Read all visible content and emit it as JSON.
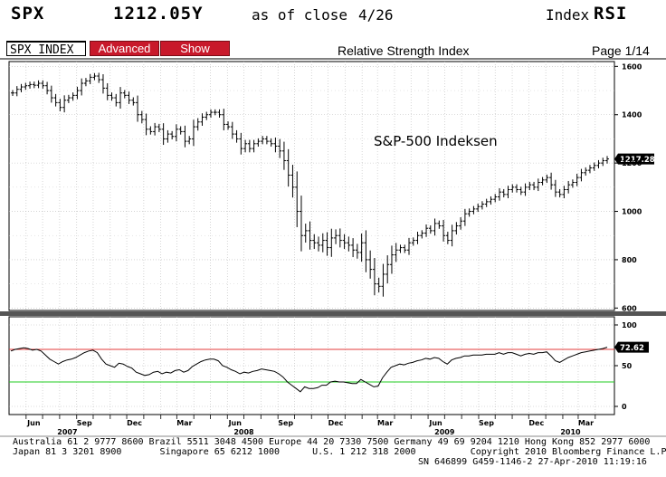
{
  "header": {
    "ticker": "SPX",
    "price": "1212.05Y",
    "as_of": "as of close",
    "date": "4/26",
    "index_label": "Index",
    "function": "RSI"
  },
  "toolbar": {
    "security_value": "SPX INDEX",
    "advanced_label": "Advanced",
    "show_label": "Show",
    "title": "Relative Strength Index",
    "page": "Page 1/14"
  },
  "colors": {
    "button_red": "#c8192b",
    "overbought_line": "#e33b3b",
    "oversold_line": "#22cc22",
    "price_tag_bg": "#000000"
  },
  "chart_data": [
    {
      "type": "ohlc",
      "title": "",
      "annotation": "S&P-500 Indeksen",
      "last_value_label": "1217.28",
      "ylim": [
        590,
        1620
      ],
      "y_ticks": [
        "1600",
        "1400",
        "1200",
        "1000",
        "800",
        "600"
      ],
      "y_tick_values": [
        1600,
        1400,
        1200,
        1000,
        800,
        600
      ],
      "grid": true,
      "x_start": "2007-05-01",
      "x_end": "2010-04-26",
      "weekly_close": [
        1490,
        1505,
        1515,
        1520,
        1525,
        1522,
        1530,
        1520,
        1500,
        1470,
        1450,
        1430,
        1460,
        1470,
        1480,
        1500,
        1530,
        1540,
        1555,
        1560,
        1545,
        1510,
        1480,
        1470,
        1450,
        1490,
        1480,
        1460,
        1450,
        1400,
        1380,
        1340,
        1330,
        1350,
        1340,
        1300,
        1320,
        1310,
        1340,
        1330,
        1290,
        1300,
        1350,
        1370,
        1390,
        1400,
        1410,
        1410,
        1400,
        1360,
        1350,
        1320,
        1300,
        1260,
        1280,
        1260,
        1280,
        1290,
        1300,
        1290,
        1280,
        1270,
        1250,
        1210,
        1150,
        1100,
        1000,
        900,
        920,
        880,
        870,
        860,
        880,
        850,
        890,
        900,
        880,
        870,
        860,
        840,
        830,
        870,
        800,
        760,
        700,
        690,
        740,
        780,
        820,
        840,
        850,
        840,
        870,
        880,
        900,
        910,
        930,
        920,
        950,
        940,
        900,
        880,
        920,
        940,
        960,
        990,
        1000,
        1010,
        1020,
        1030,
        1040,
        1050,
        1060,
        1080,
        1070,
        1090,
        1100,
        1090,
        1080,
        1100,
        1110,
        1100,
        1120,
        1130,
        1140,
        1110,
        1080,
        1070,
        1090,
        1110,
        1120,
        1140,
        1160,
        1170,
        1180,
        1190,
        1200,
        1210,
        1217
      ]
    },
    {
      "type": "line",
      "title": "",
      "last_value_label": "72.62",
      "ylim": [
        -10,
        110
      ],
      "y_ticks": [
        "100",
        "50",
        "0"
      ],
      "y_tick_values": [
        100,
        50,
        0
      ],
      "reference_lines": [
        70,
        30
      ],
      "grid": true,
      "values": [
        68,
        70,
        71,
        72,
        71,
        69,
        70,
        68,
        63,
        58,
        55,
        52,
        55,
        57,
        58,
        60,
        63,
        66,
        68,
        69,
        66,
        58,
        52,
        50,
        48,
        53,
        52,
        49,
        47,
        42,
        40,
        38,
        39,
        42,
        43,
        40,
        42,
        41,
        44,
        45,
        42,
        44,
        49,
        52,
        55,
        57,
        58,
        58,
        56,
        50,
        48,
        45,
        43,
        40,
        42,
        41,
        43,
        44,
        46,
        45,
        44,
        43,
        40,
        36,
        30,
        26,
        22,
        18,
        24,
        22,
        22,
        23,
        26,
        26,
        30,
        31,
        30,
        30,
        29,
        28,
        28,
        33,
        30,
        27,
        24,
        25,
        35,
        42,
        48,
        50,
        52,
        51,
        53,
        54,
        56,
        57,
        59,
        58,
        60,
        59,
        55,
        52,
        57,
        59,
        60,
        62,
        62,
        63,
        63,
        63,
        64,
        64,
        64,
        66,
        64,
        66,
        66,
        64,
        62,
        64,
        65,
        64,
        66,
        66,
        67,
        62,
        56,
        54,
        57,
        60,
        62,
        64,
        66,
        67,
        68,
        69,
        70,
        71,
        72.62
      ]
    }
  ],
  "x_axis": {
    "months": [
      "Jun",
      "Sep",
      "Dec",
      "Mar",
      "Jun",
      "Sep",
      "Dec",
      "Mar",
      "Jun",
      "Sep",
      "Dec",
      "Mar"
    ],
    "month_dates": [
      "2007-06-15",
      "2007-09-15",
      "2007-12-15",
      "2008-03-15",
      "2008-06-15",
      "2008-09-15",
      "2008-12-15",
      "2009-03-15",
      "2009-06-15",
      "2009-09-15",
      "2009-12-15",
      "2010-03-15"
    ],
    "years": [
      "2007",
      "2008",
      "2009",
      "2010"
    ],
    "year_dates": [
      "2007-08-15",
      "2008-07-01",
      "2009-07-01",
      "2010-02-15"
    ]
  },
  "footer": {
    "line1": "Australia 61 2 9777 8600 Brazil 5511 3048 4500 Europe 44 20 7330 7500 Germany 49 69 9204 1210 Hong Kong 852 2977 6000",
    "line2": "Japan 81 3 3201 8900       Singapore 65 6212 1000      U.S. 1 212 318 2000          Copyright 2010 Bloomberg Finance L.P.",
    "line3": "SN 646899 G459-1146-2 27-Apr-2010 11:19:16"
  }
}
